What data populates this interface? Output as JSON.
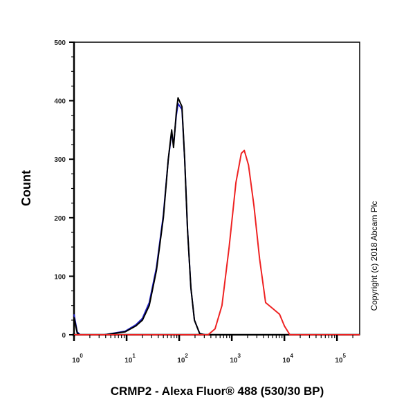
{
  "chart_data": {
    "type": "line",
    "title": "",
    "xlabel": "CRMP2 - Alexa Fluor® 488 (530/30 BP)",
    "ylabel": "Count",
    "xscale": "log",
    "xlim": [
      1,
      270000
    ],
    "ylim": [
      0,
      500
    ],
    "grid": false,
    "legend": "none",
    "x_tick_labels": [
      {
        "base": "10",
        "exp": "0",
        "value": 1
      },
      {
        "base": "10",
        "exp": "1",
        "value": 10
      },
      {
        "base": "10",
        "exp": "2",
        "value": 100
      },
      {
        "base": "10",
        "exp": "3",
        "value": 1000
      },
      {
        "base": "10",
        "exp": "4",
        "value": 10000
      },
      {
        "base": "10",
        "exp": "5",
        "value": 100000
      }
    ],
    "y_ticks": [
      "0",
      "100",
      "200",
      "300",
      "400",
      "500"
    ],
    "annotation": "Copyright (c) 2018 Abcam Plc",
    "series": [
      {
        "color": "#2222cc",
        "x": [
          1,
          1.15,
          1.3,
          3.8,
          9.4,
          15,
          20,
          27,
          37,
          50,
          62,
          72,
          78,
          88,
          95,
          113,
          127,
          144,
          167,
          195,
          245,
          307,
          270000
        ],
        "y": [
          35,
          5,
          0,
          0,
          6,
          17,
          28,
          55,
          115,
          205,
          300,
          345,
          325,
          375,
          395,
          385,
          300,
          180,
          80,
          25,
          2,
          0,
          0
        ]
      },
      {
        "color": "#000000",
        "x": [
          1,
          1.15,
          1.3,
          3.8,
          9.4,
          15,
          20,
          27,
          37,
          50,
          62,
          72,
          78,
          88,
          95,
          113,
          127,
          144,
          167,
          195,
          245,
          307,
          270000
        ],
        "y": [
          30,
          3,
          0,
          0,
          5,
          15,
          25,
          50,
          110,
          200,
          300,
          350,
          320,
          380,
          405,
          390,
          300,
          180,
          80,
          25,
          2,
          0,
          0
        ]
      },
      {
        "color": "#ee2222",
        "x": [
          1,
          355,
          480,
          650,
          890,
          1200,
          1520,
          1730,
          2080,
          2640,
          3380,
          4400,
          5960,
          8100,
          10000,
          12700,
          270000
        ],
        "y": [
          0,
          0,
          10,
          50,
          150,
          260,
          310,
          315,
          290,
          220,
          130,
          55,
          45,
          35,
          15,
          0,
          0
        ]
      }
    ]
  }
}
